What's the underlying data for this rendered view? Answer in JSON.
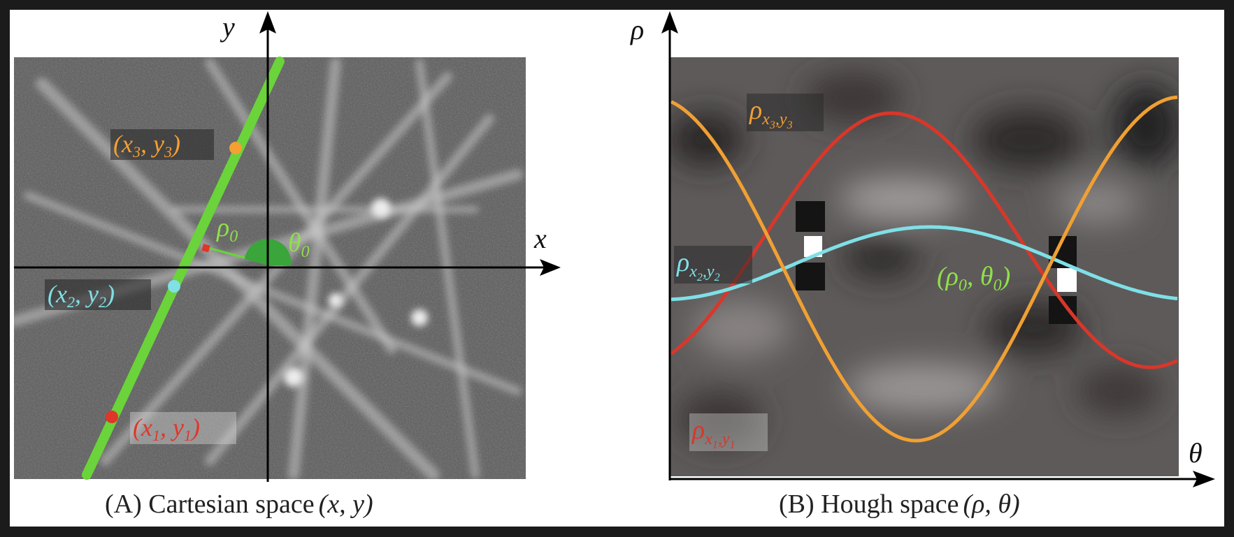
{
  "panel_a": {
    "caption": "(A) Cartesian space",
    "caption_math": "(x, y)",
    "axis_x": "x",
    "axis_y": "y",
    "rho_label": "ρ",
    "rho_sub": "0",
    "theta_label": "θ",
    "theta_sub": "0",
    "points": [
      {
        "id": "p1",
        "label": "(x",
        "sub1": "1",
        "mid": ", y",
        "sub2": "1",
        "end": ")",
        "color": "#e0362a"
      },
      {
        "id": "p2",
        "label": "(x",
        "sub1": "2",
        "mid": ", y",
        "sub2": "2",
        "end": ")",
        "color": "#7fe0e6"
      },
      {
        "id": "p3",
        "label": "(x",
        "sub1": "3",
        "mid": ", y",
        "sub2": "3",
        "end": ")",
        "color": "#f4a033"
      }
    ],
    "line_color": "#6ad43a"
  },
  "panel_b": {
    "caption": "(B) Hough space",
    "caption_math": "(ρ, θ)",
    "axis_x": "θ",
    "axis_y": "ρ",
    "intersection_label": "(ρ",
    "intersection_sub1": "0",
    "intersection_mid": ", θ",
    "intersection_sub2": "0",
    "intersection_end": ")",
    "curves": [
      {
        "id": "c1",
        "label": "ρ",
        "sub": "x",
        "sub_a": "1",
        "sub_b": ",y",
        "sub_c": "1",
        "color": "#d8372a"
      },
      {
        "id": "c2",
        "label": "ρ",
        "sub": "x",
        "sub_a": "2",
        "sub_b": ",y",
        "sub_c": "2",
        "color": "#7fe0e6"
      },
      {
        "id": "c3",
        "label": "ρ",
        "sub": "x",
        "sub_a": "3",
        "sub_b": ",y",
        "sub_c": "3",
        "color": "#f0a033"
      }
    ]
  }
}
